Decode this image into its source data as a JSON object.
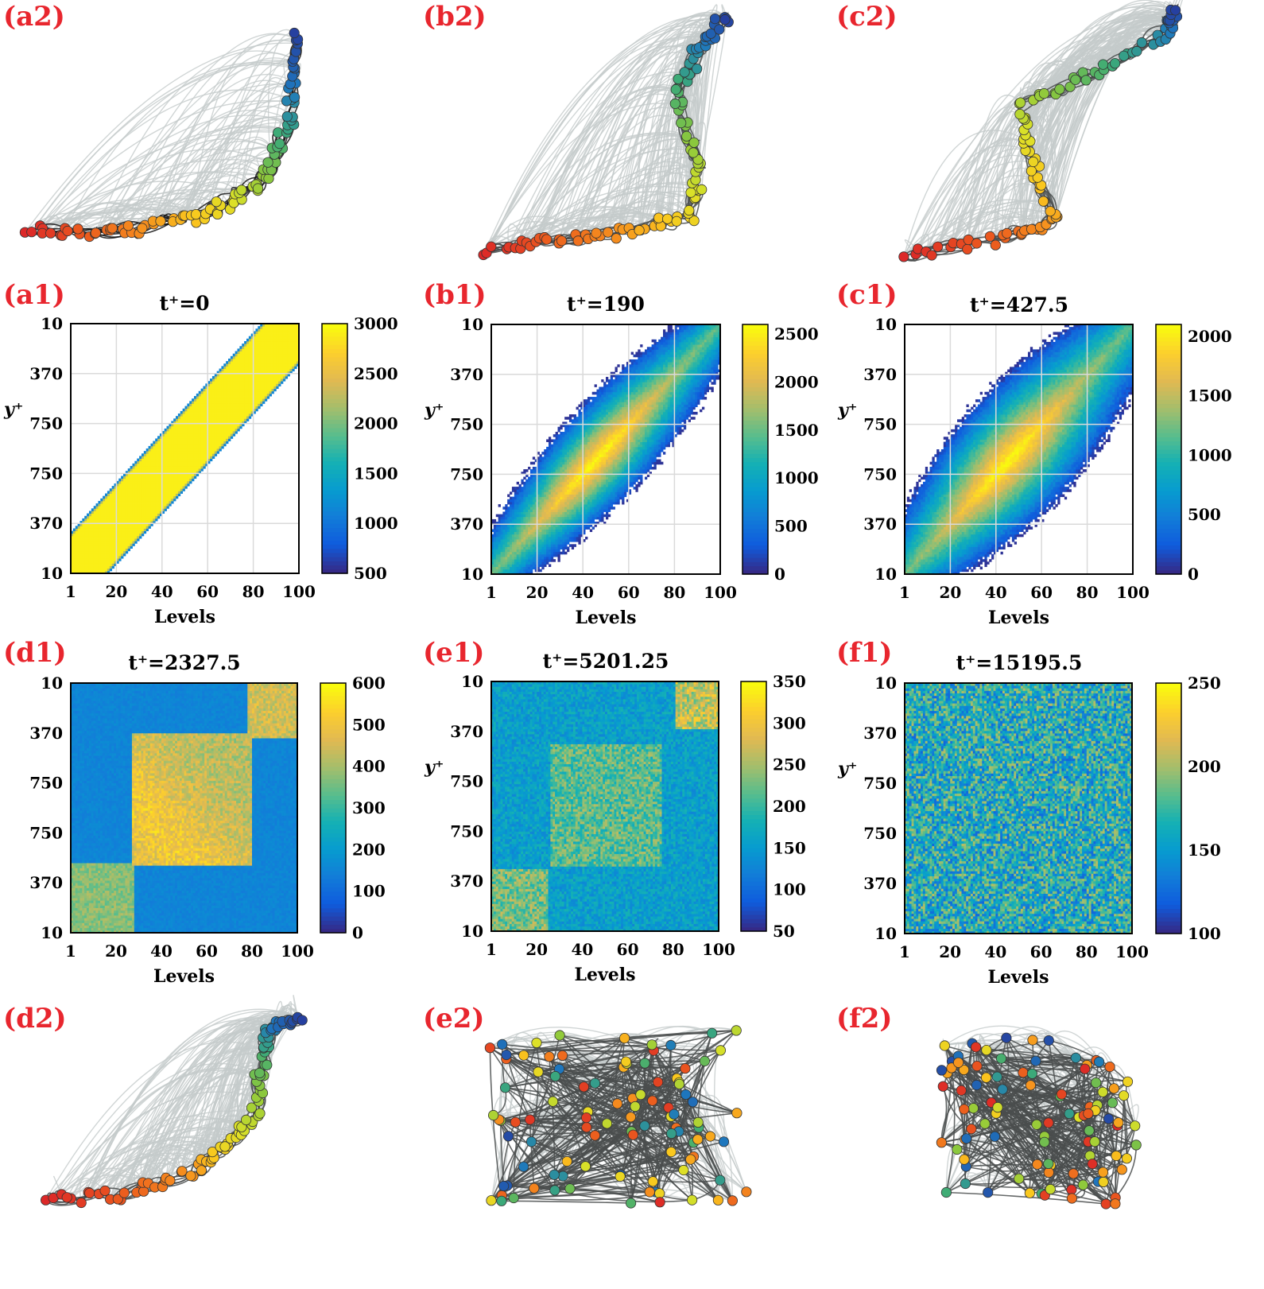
{
  "panel_labels": {
    "a2": "(a2)",
    "b2": "(b2)",
    "c2": "(c2)",
    "a1": "(a1)",
    "b1": "(b1)",
    "c1": "(c1)",
    "d1": "(d1)",
    "e1": "(e1)",
    "f1": "(f1)",
    "d2": "(d2)",
    "e2": "(e2)",
    "f2": "(f2)"
  },
  "colors": {
    "panel_label": "#e8262e",
    "strong_edge": "#111111",
    "mid_edge": "#4a4d4e",
    "weak_edge": "#c4cacb",
    "grid": "#dadada"
  },
  "chart_data": [
    {
      "type": "heatmap",
      "panel": "a1",
      "title": "t⁺=0",
      "xlabel": "Levels",
      "ylabel": "y⁺",
      "xticks": [
        "1",
        "20",
        "40",
        "60",
        "80",
        "100"
      ],
      "yticks": [
        "10",
        "370",
        "750",
        "750",
        "370",
        "10"
      ],
      "xlim": [
        1,
        100
      ],
      "ylim": [
        1,
        100
      ],
      "colorbar": {
        "min": 500,
        "max": 3000,
        "ticks": [
          "500",
          "1000",
          "1500",
          "2000",
          "2500",
          "3000"
        ]
      },
      "pattern": "band",
      "band_halfwidth": 16,
      "grid": true
    },
    {
      "type": "heatmap",
      "panel": "b1",
      "title": "t⁺=190",
      "xlabel": "Levels",
      "ylabel": "y⁺",
      "xticks": [
        "1",
        "20",
        "40",
        "60",
        "80",
        "100"
      ],
      "yticks": [
        "10",
        "370",
        "750",
        "750",
        "370",
        "10"
      ],
      "xlim": [
        1,
        100
      ],
      "ylim": [
        1,
        100
      ],
      "colorbar": {
        "min": 0,
        "max": 2600,
        "ticks": [
          "0",
          "500",
          "1000",
          "1500",
          "2000",
          "2500"
        ]
      },
      "pattern": "diffuse",
      "spread": 22,
      "grid": true
    },
    {
      "type": "heatmap",
      "panel": "c1",
      "title": "t⁺=427.5",
      "xlabel": "Levels",
      "ylabel": "y⁺",
      "xticks": [
        "1",
        "20",
        "40",
        "60",
        "80",
        "100"
      ],
      "yticks": [
        "10",
        "370",
        "750",
        "750",
        "370",
        "10"
      ],
      "xlim": [
        1,
        100
      ],
      "ylim": [
        1,
        100
      ],
      "colorbar": {
        "min": 0,
        "max": 2100,
        "ticks": [
          "0",
          "500",
          "1000",
          "1500",
          "2000"
        ]
      },
      "pattern": "diffuse",
      "spread": 30,
      "grid": true
    },
    {
      "type": "heatmap",
      "panel": "d1",
      "title": "t⁺=2327.5",
      "xlabel": "Levels",
      "ylabel": "",
      "xticks": [
        "1",
        "20",
        "40",
        "60",
        "80",
        "100"
      ],
      "yticks": [
        "10",
        "370",
        "750",
        "750",
        "370",
        "10"
      ],
      "xlim": [
        1,
        100
      ],
      "ylim": [
        1,
        100
      ],
      "colorbar": {
        "min": 0,
        "max": 600,
        "ticks": [
          "0",
          "100",
          "200",
          "300",
          "400",
          "500",
          "600"
        ]
      },
      "pattern": "blocks",
      "grid": false
    },
    {
      "type": "heatmap",
      "panel": "e1",
      "title": "t⁺=5201.25",
      "xlabel": "Levels",
      "ylabel": "y⁺",
      "xticks": [
        "1",
        "20",
        "40",
        "60",
        "80",
        "100"
      ],
      "yticks": [
        "10",
        "370",
        "750",
        "750",
        "370",
        "10"
      ],
      "xlim": [
        1,
        100
      ],
      "ylim": [
        1,
        100
      ],
      "colorbar": {
        "min": 50,
        "max": 350,
        "ticks": [
          "50",
          "100",
          "150",
          "200",
          "250",
          "300",
          "350"
        ]
      },
      "pattern": "noisy-blocks",
      "grid": false
    },
    {
      "type": "heatmap",
      "panel": "f1",
      "title": "t⁺=15195.5",
      "xlabel": "Levels",
      "ylabel": "y⁺",
      "xticks": [
        "1",
        "20",
        "40",
        "60",
        "80",
        "100"
      ],
      "yticks": [
        "10",
        "370",
        "750",
        "750",
        "370",
        "10"
      ],
      "xlim": [
        1,
        100
      ],
      "ylim": [
        1,
        100
      ],
      "colorbar": {
        "min": 100,
        "max": 250,
        "ticks": [
          "100",
          "150",
          "200",
          "250"
        ]
      },
      "pattern": "noise",
      "grid": false
    },
    {
      "type": "network",
      "panel": "a2",
      "nodes": 100,
      "layout": "curve",
      "edge_style": "strong"
    },
    {
      "type": "network",
      "panel": "b2",
      "nodes": 100,
      "layout": "curve",
      "edge_style": "mixed"
    },
    {
      "type": "network",
      "panel": "c2",
      "nodes": 100,
      "layout": "curve",
      "edge_style": "mixed"
    },
    {
      "type": "network",
      "panel": "d2",
      "nodes": 100,
      "layout": "cluster",
      "edge_style": "mixed"
    },
    {
      "type": "network",
      "panel": "e2",
      "nodes": 100,
      "layout": "blob",
      "edge_style": "dense"
    },
    {
      "type": "network",
      "panel": "f2",
      "nodes": 100,
      "layout": "blob",
      "edge_style": "dense"
    }
  ]
}
